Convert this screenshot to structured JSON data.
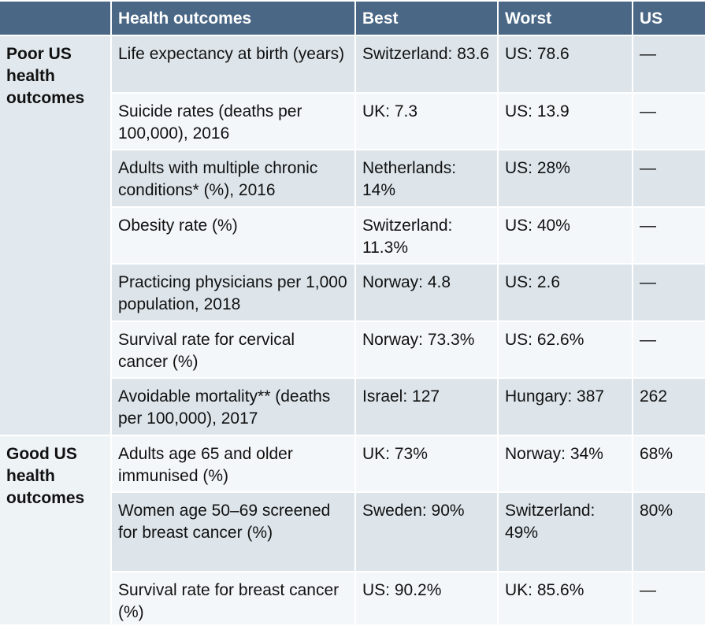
{
  "header": {
    "col0": "",
    "outcome": "Health outcomes",
    "best": "Best",
    "worst": "Worst",
    "us": "US"
  },
  "groups": [
    {
      "label": "Poor US health outcomes",
      "rows": [
        {
          "outcome": "Life expectancy at birth (years)",
          "best": "Switzerland: 83.6",
          "worst": "US: 78.6",
          "us": "—"
        },
        {
          "outcome": "Suicide rates (deaths per 100,000), 2016",
          "best": "UK: 7.3",
          "worst": "US: 13.9",
          "us": "—"
        },
        {
          "outcome": "Adults with multiple chronic conditions* (%), 2016",
          "best": "Netherlands: 14%",
          "worst": "US: 28%",
          "us": "—"
        },
        {
          "outcome": "Obesity rate (%)",
          "best": "Switzerland: 11.3%",
          "worst": "US: 40%",
          "us": "—"
        },
        {
          "outcome": "Practicing physicians per 1,000 population, 2018",
          "best": "Norway: 4.8",
          "worst": "US: 2.6",
          "us": "—"
        },
        {
          "outcome": "Survival rate for cervical cancer (%)",
          "best": "Norway: 73.3%",
          "worst": "US: 62.6%",
          "us": "—"
        },
        {
          "outcome": "Avoidable mortality** (deaths per 100,000), 2017",
          "best": "Israel: 127",
          "worst": "Hungary: 387",
          "us": "262"
        }
      ]
    },
    {
      "label": "Good US health outcomes",
      "rows": [
        {
          "outcome": "Adults age 65 and older immunised (%)",
          "best": "UK: 73%",
          "worst": "Norway: 34%",
          "us": "68%"
        },
        {
          "outcome": "Women age 50–69 screened for breast cancer (%)",
          "best": "Sweden: 90%",
          "worst": "Switzerland: 49%",
          "us": "80%"
        },
        {
          "outcome": "Survival rate for breast cancer (%)",
          "best": "US: 90.2%",
          "worst": "UK: 85.6%",
          "us": "—"
        }
      ]
    }
  ]
}
